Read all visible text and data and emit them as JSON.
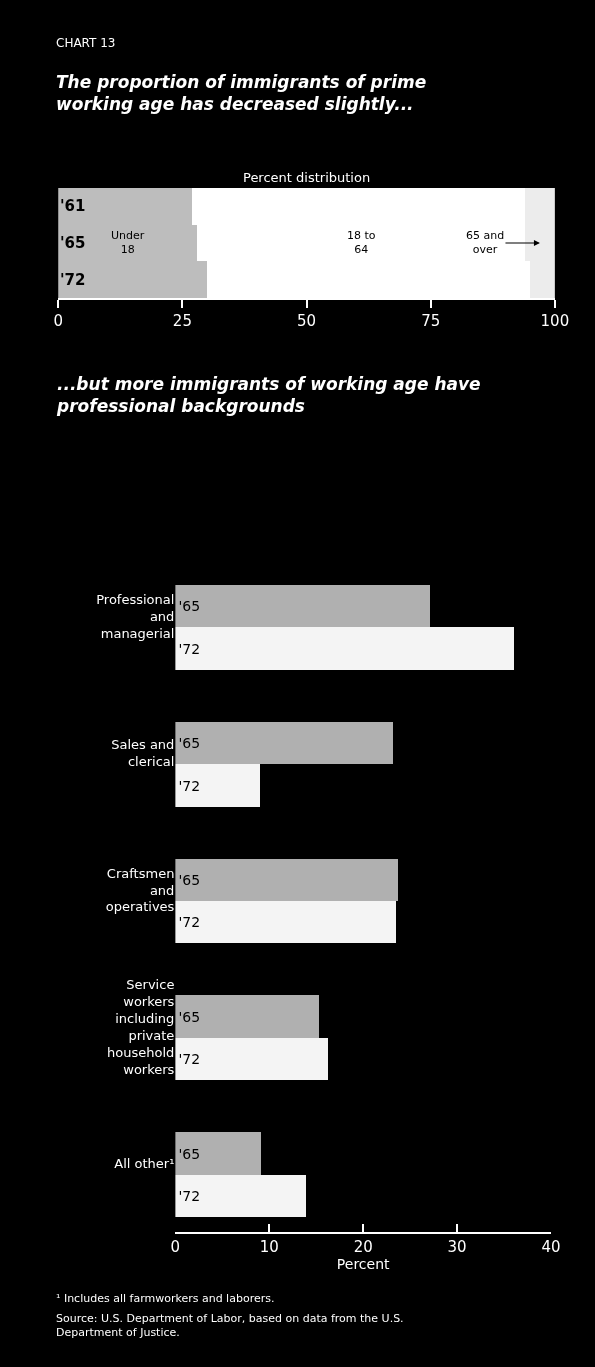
{
  "chart_data": [
    {
      "type": "bar",
      "orientation": "horizontal",
      "stacked": true,
      "title": "The proportion of immigrants of prime working age has decreased slightly...",
      "subtitle": "Percent distribution",
      "annotations": [
        "CHART 13"
      ],
      "categories": [
        "'61",
        "'65",
        "'72"
      ],
      "series": [
        {
          "name": "Under 18",
          "color": "#bdbdbd",
          "values": [
            27,
            28,
            30
          ]
        },
        {
          "name": "18 to 64",
          "color": "#ffffff",
          "values": [
            67,
            66,
            65
          ]
        },
        {
          "name": "65 and over",
          "color": "#ececec",
          "values": [
            6,
            6,
            5
          ]
        }
      ],
      "xlim": [
        0,
        100
      ],
      "xticks": [
        0,
        25,
        50,
        75,
        100
      ],
      "grid": false
    },
    {
      "type": "bar",
      "orientation": "horizontal",
      "title": "...but more immigrants of working age have professional backgrounds",
      "xlabel": "Percent",
      "annotations": [
        "¹ Includes all farmworkers and laborers.",
        "Source: U.S. Department of Labor, based on data from the U.S. Department of Justice."
      ],
      "categories": [
        "Professional and managerial",
        "Sales and clerical",
        "Craftsmen and operatives",
        "Service workers including private household workers",
        "All other¹"
      ],
      "series": [
        {
          "name": "'65",
          "color": "#b0b0b0",
          "values": [
            27.2,
            23.2,
            23.8,
            15.3,
            9.2
          ]
        },
        {
          "name": "'72",
          "color": "#f4f4f4",
          "values": [
            36.1,
            9.0,
            23.5,
            16.3,
            13.9
          ]
        }
      ],
      "xlim": [
        0,
        40
      ],
      "xticks": [
        0,
        10,
        20,
        30,
        40
      ],
      "grid": false
    }
  ]
}
